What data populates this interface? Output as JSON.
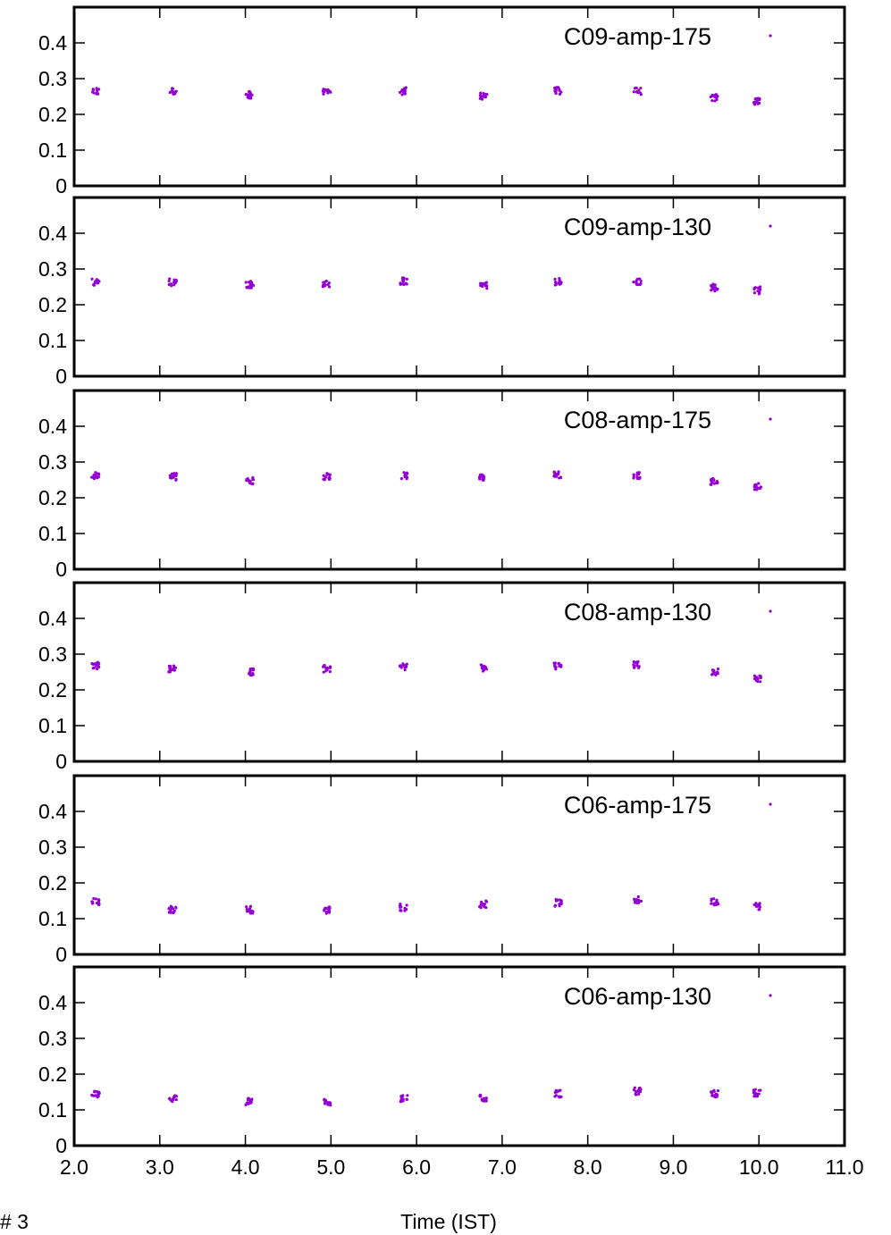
{
  "figure_label": "# 3",
  "xlabel": "Time (IST)",
  "colors": {
    "marker": "#9400d3",
    "axis": "#000000"
  },
  "chart_data": [
    {
      "type": "scatter",
      "legend": "C09-amp-175",
      "xlim": [
        2.0,
        11.0
      ],
      "ylim": [
        0,
        0.5
      ],
      "xticks": [
        "2.0",
        "3.0",
        "4.0",
        "5.0",
        "6.0",
        "7.0",
        "8.0",
        "9.0",
        "10.0",
        "11.0"
      ],
      "yticks": [
        "0",
        "0.1",
        "0.2",
        "0.3",
        "0.4"
      ],
      "show_xtick_labels": false,
      "clusters": [
        {
          "x": 2.25,
          "y": 0.263
        },
        {
          "x": 3.15,
          "y": 0.265
        },
        {
          "x": 4.05,
          "y": 0.255
        },
        {
          "x": 4.95,
          "y": 0.262
        },
        {
          "x": 5.85,
          "y": 0.265
        },
        {
          "x": 6.78,
          "y": 0.252
        },
        {
          "x": 7.65,
          "y": 0.266
        },
        {
          "x": 8.58,
          "y": 0.265
        },
        {
          "x": 9.48,
          "y": 0.246
        },
        {
          "x": 9.98,
          "y": 0.237
        }
      ]
    },
    {
      "type": "scatter",
      "legend": "C09-amp-130",
      "xlim": [
        2.0,
        11.0
      ],
      "ylim": [
        0,
        0.5
      ],
      "xticks": [
        "2.0",
        "3.0",
        "4.0",
        "5.0",
        "6.0",
        "7.0",
        "8.0",
        "9.0",
        "10.0",
        "11.0"
      ],
      "yticks": [
        "0",
        "0.1",
        "0.2",
        "0.3",
        "0.4"
      ],
      "show_xtick_labels": false,
      "clusters": [
        {
          "x": 2.25,
          "y": 0.262
        },
        {
          "x": 3.15,
          "y": 0.263
        },
        {
          "x": 4.05,
          "y": 0.256
        },
        {
          "x": 4.95,
          "y": 0.258
        },
        {
          "x": 5.85,
          "y": 0.266
        },
        {
          "x": 6.78,
          "y": 0.253
        },
        {
          "x": 7.65,
          "y": 0.265
        },
        {
          "x": 8.58,
          "y": 0.266
        },
        {
          "x": 9.48,
          "y": 0.248
        },
        {
          "x": 9.98,
          "y": 0.24
        }
      ]
    },
    {
      "type": "scatter",
      "legend": "C08-amp-175",
      "xlim": [
        2.0,
        11.0
      ],
      "ylim": [
        0,
        0.5
      ],
      "xticks": [
        "2.0",
        "3.0",
        "4.0",
        "5.0",
        "6.0",
        "7.0",
        "8.0",
        "9.0",
        "10.0",
        "11.0"
      ],
      "yticks": [
        "0",
        "0.1",
        "0.2",
        "0.3",
        "0.4"
      ],
      "show_xtick_labels": false,
      "clusters": [
        {
          "x": 2.25,
          "y": 0.261
        },
        {
          "x": 3.15,
          "y": 0.259
        },
        {
          "x": 4.05,
          "y": 0.248
        },
        {
          "x": 4.95,
          "y": 0.259
        },
        {
          "x": 5.85,
          "y": 0.263
        },
        {
          "x": 6.78,
          "y": 0.258
        },
        {
          "x": 7.65,
          "y": 0.264
        },
        {
          "x": 8.58,
          "y": 0.263
        },
        {
          "x": 9.48,
          "y": 0.246
        },
        {
          "x": 9.98,
          "y": 0.232
        }
      ]
    },
    {
      "type": "scatter",
      "legend": "C08-amp-130",
      "xlim": [
        2.0,
        11.0
      ],
      "ylim": [
        0,
        0.5
      ],
      "xticks": [
        "2.0",
        "3.0",
        "4.0",
        "5.0",
        "6.0",
        "7.0",
        "8.0",
        "9.0",
        "10.0",
        "11.0"
      ],
      "yticks": [
        "0",
        "0.1",
        "0.2",
        "0.3",
        "0.4"
      ],
      "show_xtick_labels": false,
      "clusters": [
        {
          "x": 2.25,
          "y": 0.268
        },
        {
          "x": 3.15,
          "y": 0.259
        },
        {
          "x": 4.05,
          "y": 0.25
        },
        {
          "x": 4.95,
          "y": 0.259
        },
        {
          "x": 5.85,
          "y": 0.265
        },
        {
          "x": 6.78,
          "y": 0.261
        },
        {
          "x": 7.65,
          "y": 0.268
        },
        {
          "x": 8.58,
          "y": 0.27
        },
        {
          "x": 9.48,
          "y": 0.25
        },
        {
          "x": 9.98,
          "y": 0.232
        }
      ]
    },
    {
      "type": "scatter",
      "legend": "C06-amp-175",
      "xlim": [
        2.0,
        11.0
      ],
      "ylim": [
        0,
        0.5
      ],
      "xticks": [
        "2.0",
        "3.0",
        "4.0",
        "5.0",
        "6.0",
        "7.0",
        "8.0",
        "9.0",
        "10.0",
        "11.0"
      ],
      "yticks": [
        "0",
        "0.1",
        "0.2",
        "0.3",
        "0.4"
      ],
      "show_xtick_labels": false,
      "clusters": [
        {
          "x": 2.25,
          "y": 0.147
        },
        {
          "x": 3.15,
          "y": 0.126
        },
        {
          "x": 4.05,
          "y": 0.125
        },
        {
          "x": 4.95,
          "y": 0.124
        },
        {
          "x": 5.85,
          "y": 0.132
        },
        {
          "x": 6.78,
          "y": 0.14
        },
        {
          "x": 7.65,
          "y": 0.144
        },
        {
          "x": 8.58,
          "y": 0.152
        },
        {
          "x": 9.48,
          "y": 0.148
        },
        {
          "x": 9.98,
          "y": 0.135
        }
      ]
    },
    {
      "type": "scatter",
      "legend": "C06-amp-130",
      "xlim": [
        2.0,
        11.0
      ],
      "ylim": [
        0,
        0.5
      ],
      "xticks": [
        "2.0",
        "3.0",
        "4.0",
        "5.0",
        "6.0",
        "7.0",
        "8.0",
        "9.0",
        "10.0",
        "11.0"
      ],
      "yticks": [
        "0",
        "0.1",
        "0.2",
        "0.3",
        "0.4"
      ],
      "show_xtick_labels": true,
      "clusters": [
        {
          "x": 2.25,
          "y": 0.145
        },
        {
          "x": 3.15,
          "y": 0.132
        },
        {
          "x": 4.05,
          "y": 0.124
        },
        {
          "x": 4.95,
          "y": 0.123
        },
        {
          "x": 5.85,
          "y": 0.133
        },
        {
          "x": 6.78,
          "y": 0.134
        },
        {
          "x": 7.65,
          "y": 0.145
        },
        {
          "x": 8.58,
          "y": 0.152
        },
        {
          "x": 9.48,
          "y": 0.145
        },
        {
          "x": 9.98,
          "y": 0.148
        }
      ]
    }
  ]
}
